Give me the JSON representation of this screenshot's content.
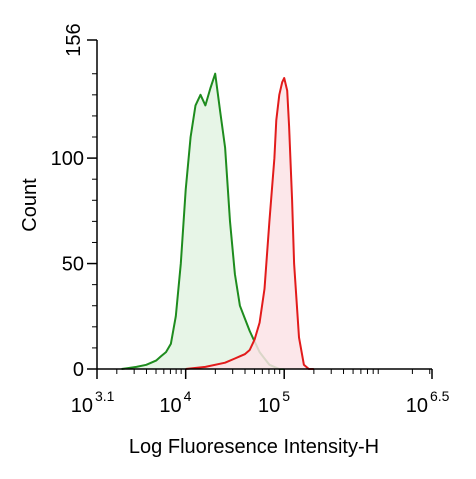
{
  "chart_data": {
    "type": "area",
    "title": "",
    "xlabel": "Log Fluoresence Intensity-H",
    "ylabel": "Count",
    "x_scale": "log10",
    "xlim": [
      3.1,
      6.5
    ],
    "ylim": [
      0,
      156
    ],
    "x_ticks": [
      {
        "value": 3.1,
        "base": "10",
        "exp": "3.1"
      },
      {
        "value": 4,
        "base": "10",
        "exp": "4"
      },
      {
        "value": 5,
        "base": "10",
        "exp": "5"
      },
      {
        "value": 6.5,
        "base": "10",
        "exp": "6.5"
      }
    ],
    "y_ticks": [
      {
        "value": 0,
        "label": "0"
      },
      {
        "value": 50,
        "label": "50"
      },
      {
        "value": 100,
        "label": "100"
      },
      {
        "value": 156,
        "label": "156"
      }
    ],
    "grid": false,
    "legend": "none",
    "series": [
      {
        "color": "#1e8c1e",
        "fill": "#e3f3e3",
        "x": [
          3.35,
          3.5,
          3.6,
          3.7,
          3.75,
          3.8,
          3.85,
          3.9,
          3.95,
          4.0,
          4.05,
          4.1,
          4.15,
          4.2,
          4.25,
          4.3,
          4.35,
          4.4,
          4.45,
          4.5,
          4.55,
          4.6,
          4.65,
          4.7,
          4.75,
          4.8,
          4.85,
          4.9,
          4.95,
          5.0
        ],
        "y": [
          0,
          1,
          2,
          4,
          6,
          8,
          12,
          25,
          50,
          85,
          110,
          125,
          130,
          125,
          133,
          140,
          122,
          105,
          70,
          45,
          30,
          24,
          18,
          13,
          8,
          5,
          2,
          1,
          0,
          0
        ]
      },
      {
        "color": "#e21b1b",
        "fill": "#fbe3e6",
        "x": [
          4.0,
          4.2,
          4.4,
          4.5,
          4.55,
          4.6,
          4.65,
          4.7,
          4.75,
          4.8,
          4.85,
          4.9,
          4.92,
          4.95,
          4.98,
          5.0,
          5.03,
          5.05,
          5.08,
          5.1,
          5.15,
          5.2,
          5.25,
          5.3
        ],
        "y": [
          0,
          1,
          3,
          5,
          6,
          7,
          9,
          14,
          22,
          38,
          70,
          100,
          118,
          130,
          136,
          138,
          132,
          115,
          80,
          50,
          15,
          2,
          0,
          0
        ]
      }
    ]
  }
}
